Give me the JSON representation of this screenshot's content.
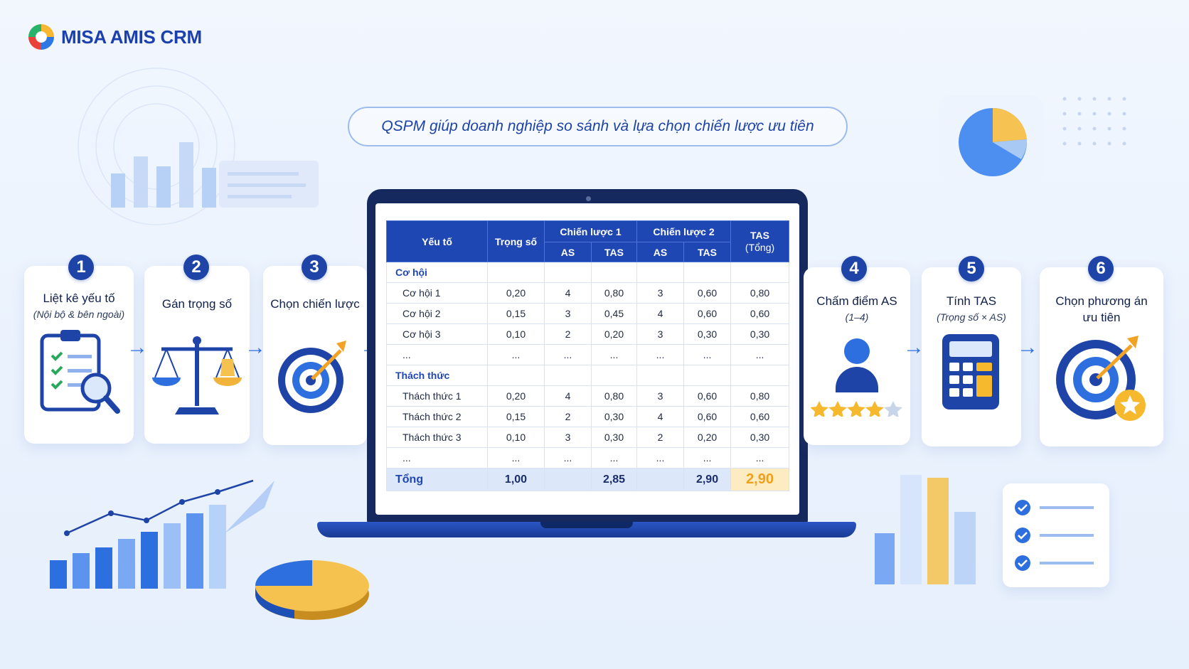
{
  "brand": {
    "name": "MISA AMIS CRM"
  },
  "subtitle": "QSPM giúp doanh nghiệp so sánh và lựa chọn chiến lược ưu tiên",
  "colors": {
    "primary": "#1f47b3",
    "accent": "#f5b83a",
    "arrow": "#2f6fe0"
  },
  "steps": [
    {
      "num": "1",
      "title": "Liệt kê yếu tố",
      "sub": "(Nội bộ & bên ngoài)",
      "icon": "clipboard-search-icon"
    },
    {
      "num": "2",
      "title": "Gán trọng số",
      "sub": "",
      "icon": "balance-scale-icon"
    },
    {
      "num": "3",
      "title": "Chọn chiến lược",
      "sub": "",
      "icon": "target-icon"
    },
    {
      "num": "4",
      "title": "Chấm điểm AS",
      "sub": "(1–4)",
      "icon": "user-rating-icon"
    },
    {
      "num": "5",
      "title": "Tính TAS",
      "sub": "(Trọng số × AS)",
      "icon": "calculator-icon"
    },
    {
      "num": "6",
      "title": "Chọn phương án ưu tiên",
      "sub": "",
      "icon": "target-star-icon"
    }
  ],
  "table": {
    "headers": {
      "factor": "Yếu tố",
      "weight": "Trọng số",
      "strategy1": "Chiến lược 1",
      "strategy2": "Chiến lược 2",
      "as": "AS",
      "tas": "TAS",
      "tas_total": "TAS",
      "tas_total_sub": "(Tổng)"
    },
    "group1": "Cơ hội",
    "group1_rows": [
      [
        "Cơ hội 1",
        "0,20",
        "4",
        "0,80",
        "3",
        "0,60",
        "0,80"
      ],
      [
        "Cơ hội 2",
        "0,15",
        "3",
        "0,45",
        "4",
        "0,60",
        "0,60"
      ],
      [
        "Cơ hội 3",
        "0,10",
        "2",
        "0,20",
        "3",
        "0,30",
        "0,30"
      ],
      [
        "...",
        "...",
        "...",
        "...",
        "...",
        "...",
        "..."
      ]
    ],
    "group2": "Thách thức",
    "group2_rows": [
      [
        "Thách thức 1",
        "0,20",
        "4",
        "0,80",
        "3",
        "0,60",
        "0,80"
      ],
      [
        "Thách thức 2",
        "0,15",
        "2",
        "0,30",
        "4",
        "0,60",
        "0,60"
      ],
      [
        "Thách thức 3",
        "0,10",
        "3",
        "0,30",
        "2",
        "0,20",
        "0,30"
      ],
      [
        "...",
        "...",
        "...",
        "...",
        "...",
        "...",
        "..."
      ]
    ],
    "total": [
      "Tổng",
      "1,00",
      "",
      "2,85",
      "",
      "2,90",
      "2,90"
    ]
  }
}
